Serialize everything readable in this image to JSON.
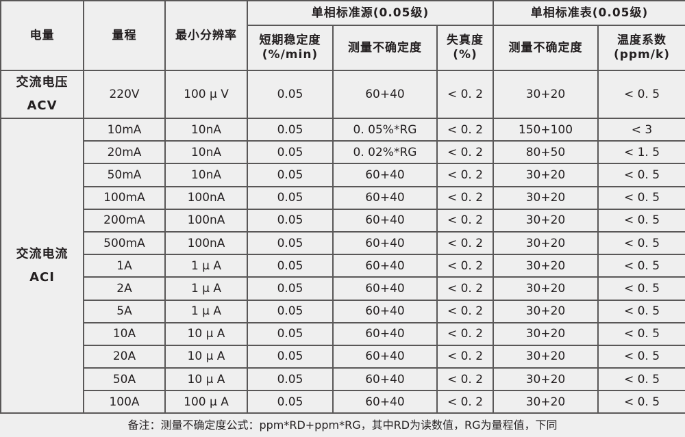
{
  "headers": {
    "quantity": "电量",
    "range": "量程",
    "resolution": "最小分辨率",
    "source_group": "单相标准源(0.05级)",
    "meter_group": "单相标准表(0.05级)",
    "stability": "短期稳定度",
    "stability_unit": "(%/min)",
    "source_uncertainty": "测量不确定度",
    "distortion": "失真度",
    "distortion_unit": "(%)",
    "meter_uncertainty": "测量不确定度",
    "temp_coeff": "温度系数",
    "temp_coeff_unit": "(ppm/k)"
  },
  "acv": {
    "label_cn": "交流电压",
    "label_en": "ACV",
    "row": [
      "220V",
      "100 μ V",
      "0.05",
      "60+40",
      "< 0. 2",
      "30+20",
      "< 0. 5"
    ]
  },
  "aci": {
    "label_cn": "交流电流",
    "label_en": "ACI",
    "rows": [
      [
        "10mA",
        "10nA",
        "0.05",
        "0. 05%*RG",
        "< 0. 2",
        "150+100",
        "< 3"
      ],
      [
        "20mA",
        "10nA",
        "0.05",
        "0. 02%*RG",
        "< 0. 2",
        "80+50",
        "< 1. 5"
      ],
      [
        "50mA",
        "10nA",
        "0.05",
        "60+40",
        "< 0. 2",
        "30+20",
        "< 0. 5"
      ],
      [
        "100mA",
        "100nA",
        "0.05",
        "60+40",
        "< 0. 2",
        "30+20",
        "< 0. 5"
      ],
      [
        "200mA",
        "100nA",
        "0.05",
        "60+40",
        "< 0. 2",
        "30+20",
        "< 0. 5"
      ],
      [
        "500mA",
        "100nA",
        "0.05",
        "60+40",
        "< 0. 2",
        "30+20",
        "< 0. 5"
      ],
      [
        "1A",
        "1 μ A",
        "0.05",
        "60+40",
        "< 0. 2",
        "30+20",
        "< 0. 5"
      ],
      [
        "2A",
        "1 μ A",
        "0.05",
        "60+40",
        "< 0. 2",
        "30+20",
        "< 0. 5"
      ],
      [
        "5A",
        "1 μ A",
        "0.05",
        "60+40",
        "< 0. 2",
        "30+20",
        "< 0. 5"
      ],
      [
        "10A",
        "10 μ A",
        "0.05",
        "60+40",
        "< 0. 2",
        "30+20",
        "< 0. 5"
      ],
      [
        "20A",
        "10 μ A",
        "0.05",
        "60+40",
        "< 0. 2",
        "30+20",
        "< 0. 5"
      ],
      [
        "50A",
        "10 μ A",
        "0.05",
        "60+40",
        "< 0. 2",
        "30+20",
        "< 0. 5"
      ],
      [
        "100A",
        "100 μ A",
        "0.05",
        "60+40",
        "< 0. 2",
        "30+20",
        "< 0. 5"
      ]
    ]
  },
  "footer": "备注：测量不确定度公式：ppm*RD+ppm*RG，其中RD为读数值，RG为量程值，下同"
}
